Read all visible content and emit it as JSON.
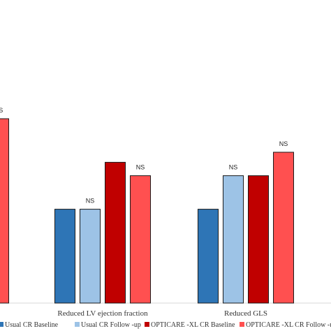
{
  "chart_data": {
    "type": "bar",
    "categories": [
      "",
      "Reduced LV ejection fraction",
      "Reduced GLS"
    ],
    "series": [
      {
        "name": "Usual CR Baseline",
        "color": "#2e75b6",
        "values": [
          null,
          28,
          28
        ]
      },
      {
        "name": "Usual CR Follow-up",
        "color": "#9dc3e6",
        "values": [
          null,
          28,
          38
        ]
      },
      {
        "name": "OPTICARE-XL CR Baseline",
        "color": "#c00000",
        "values": [
          null,
          42,
          38
        ]
      },
      {
        "name": "OPTICARE-XL CR Follow-up",
        "color": "#ff5050",
        "values": [
          55,
          38,
          45
        ]
      }
    ],
    "annotations": [
      {
        "category": 0,
        "series": 3,
        "text": "NS"
      },
      {
        "category": 1,
        "series": 1,
        "text": "NS"
      },
      {
        "category": 1,
        "series": 3,
        "text": "NS"
      },
      {
        "category": 2,
        "series": 1,
        "text": "NS"
      },
      {
        "category": 2,
        "series": 3,
        "text": "NS"
      }
    ],
    "ylim": [
      0,
      100
    ],
    "legend_position": "bottom",
    "legend_labels": [
      "Usual CR Baseline",
      "Usual CR Follow -up",
      "OPTICARE -XL CR Baseline",
      "OPTICARE -XL CR Follow -up"
    ]
  }
}
